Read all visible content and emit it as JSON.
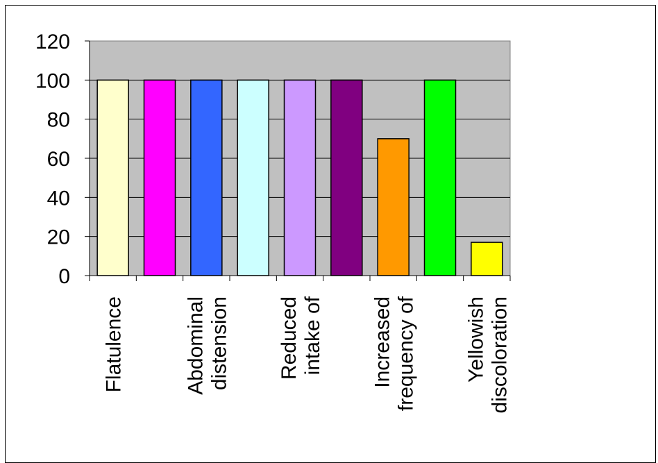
{
  "chart_data": {
    "type": "bar",
    "categories": [
      "Flatulence",
      "",
      "Abdominal distension",
      "",
      "Reduced intake of",
      "",
      "Increased frequency of",
      "",
      "Yellowish discoloration"
    ],
    "category_lines": [
      [
        "Flatulence"
      ],
      [],
      [
        "Abdominal",
        "distension"
      ],
      [],
      [
        "Reduced",
        "intake of"
      ],
      [],
      [
        "Increased",
        "frequency of"
      ],
      [],
      [
        "Yellowish",
        "discoloration"
      ]
    ],
    "values": [
      100,
      100,
      100,
      100,
      100,
      100,
      70,
      100,
      17
    ],
    "bar_colors": [
      "#FFFFCC",
      "#FF00FF",
      "#3366FF",
      "#CCFFFF",
      "#CC99FF",
      "#800080",
      "#FF9900",
      "#00FF00",
      "#FFFF00"
    ],
    "plot_background": "#C0C0C0",
    "ylim": [
      0,
      120
    ],
    "yticks": [
      0,
      20,
      40,
      60,
      80,
      100,
      120
    ],
    "grid": true,
    "title": "",
    "xlabel": "",
    "ylabel": ""
  }
}
